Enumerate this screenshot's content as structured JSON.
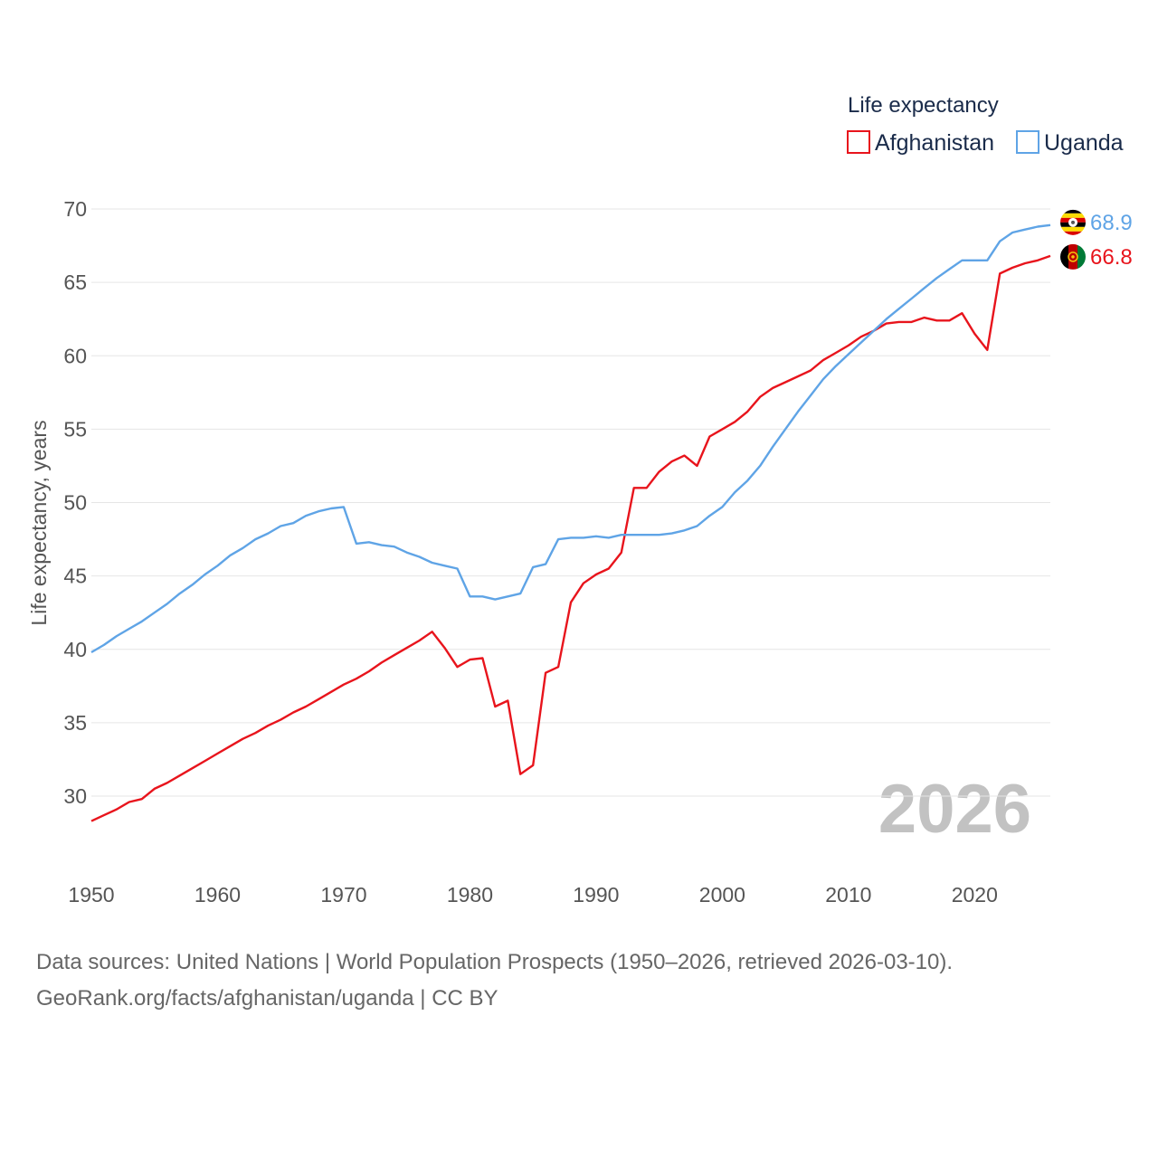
{
  "chart_data": {
    "type": "line",
    "legend_title": "Life expectancy",
    "ylabel": "Life expectancy, years",
    "xlabel": "",
    "xlim": [
      1950,
      2026
    ],
    "ylim": [
      25,
      70
    ],
    "xticks": [
      1950,
      1960,
      1970,
      1980,
      1990,
      2000,
      2010,
      2020
    ],
    "yticks": [
      30,
      35,
      40,
      45,
      50,
      55,
      60,
      65,
      70
    ],
    "year_overlay": "2026",
    "legend_position": "top-right",
    "series": [
      {
        "name": "Afghanistan",
        "color": "#e8141c",
        "end_label": "66.8",
        "x": [
          1950,
          1951,
          1952,
          1953,
          1954,
          1955,
          1956,
          1957,
          1958,
          1959,
          1960,
          1961,
          1962,
          1963,
          1964,
          1965,
          1966,
          1967,
          1968,
          1969,
          1970,
          1971,
          1972,
          1973,
          1974,
          1975,
          1976,
          1977,
          1978,
          1979,
          1980,
          1981,
          1982,
          1983,
          1984,
          1985,
          1986,
          1987,
          1988,
          1989,
          1990,
          1991,
          1992,
          1993,
          1994,
          1995,
          1996,
          1997,
          1998,
          1999,
          2000,
          2001,
          2002,
          2003,
          2004,
          2005,
          2006,
          2007,
          2008,
          2009,
          2010,
          2011,
          2012,
          2013,
          2014,
          2015,
          2016,
          2017,
          2018,
          2019,
          2020,
          2021,
          2022,
          2023,
          2024,
          2025,
          2026
        ],
        "values": [
          28.3,
          28.7,
          29.1,
          29.6,
          29.8,
          30.5,
          30.9,
          31.4,
          31.9,
          32.4,
          32.9,
          33.4,
          33.9,
          34.3,
          34.8,
          35.2,
          35.7,
          36.1,
          36.6,
          37.1,
          37.6,
          38.0,
          38.5,
          39.1,
          39.6,
          40.1,
          40.6,
          41.2,
          40.1,
          38.8,
          39.3,
          39.4,
          36.1,
          36.5,
          31.5,
          32.1,
          38.4,
          38.8,
          43.2,
          44.5,
          45.1,
          45.5,
          46.6,
          51.0,
          51.0,
          52.1,
          52.8,
          53.2,
          52.5,
          54.5,
          55.0,
          55.5,
          56.2,
          57.2,
          57.8,
          58.2,
          58.6,
          59.0,
          59.7,
          60.2,
          60.7,
          61.3,
          61.7,
          62.2,
          62.3,
          62.3,
          62.6,
          62.4,
          62.4,
          62.9,
          61.5,
          60.4,
          65.6,
          66.0,
          66.3,
          66.5,
          66.8
        ]
      },
      {
        "name": "Uganda",
        "color": "#5fa4e6",
        "end_label": "68.9",
        "x": [
          1950,
          1951,
          1952,
          1953,
          1954,
          1955,
          1956,
          1957,
          1958,
          1959,
          1960,
          1961,
          1962,
          1963,
          1964,
          1965,
          1966,
          1967,
          1968,
          1969,
          1970,
          1971,
          1972,
          1973,
          1974,
          1975,
          1976,
          1977,
          1978,
          1979,
          1980,
          1981,
          1982,
          1983,
          1984,
          1985,
          1986,
          1987,
          1988,
          1989,
          1990,
          1991,
          1992,
          1993,
          1994,
          1995,
          1996,
          1997,
          1998,
          1999,
          2000,
          2001,
          2002,
          2003,
          2004,
          2005,
          2006,
          2007,
          2008,
          2009,
          2010,
          2011,
          2012,
          2013,
          2014,
          2015,
          2016,
          2017,
          2018,
          2019,
          2020,
          2021,
          2022,
          2023,
          2024,
          2025,
          2026
        ],
        "values": [
          39.8,
          40.3,
          40.9,
          41.4,
          41.9,
          42.5,
          43.1,
          43.8,
          44.4,
          45.1,
          45.7,
          46.4,
          46.9,
          47.5,
          47.9,
          48.4,
          48.6,
          49.1,
          49.4,
          49.6,
          49.7,
          47.2,
          47.3,
          47.1,
          47.0,
          46.6,
          46.3,
          45.9,
          45.7,
          45.5,
          43.6,
          43.6,
          43.4,
          43.6,
          43.8,
          45.6,
          45.8,
          47.5,
          47.6,
          47.6,
          47.7,
          47.6,
          47.8,
          47.8,
          47.8,
          47.8,
          47.9,
          48.1,
          48.4,
          49.1,
          49.7,
          50.7,
          51.5,
          52.5,
          53.8,
          55.0,
          56.2,
          57.3,
          58.4,
          59.3,
          60.1,
          60.9,
          61.7,
          62.5,
          63.2,
          63.9,
          64.6,
          65.3,
          65.9,
          66.5,
          66.5,
          66.5,
          67.8,
          68.4,
          68.6,
          68.8,
          68.9
        ]
      }
    ]
  },
  "footer": {
    "line1": "Data sources: United Nations | World Population Prospects (1950–2026, retrieved 2026-03-10).",
    "line2": "GeoRank.org/facts/afghanistan/uganda | CC BY"
  }
}
